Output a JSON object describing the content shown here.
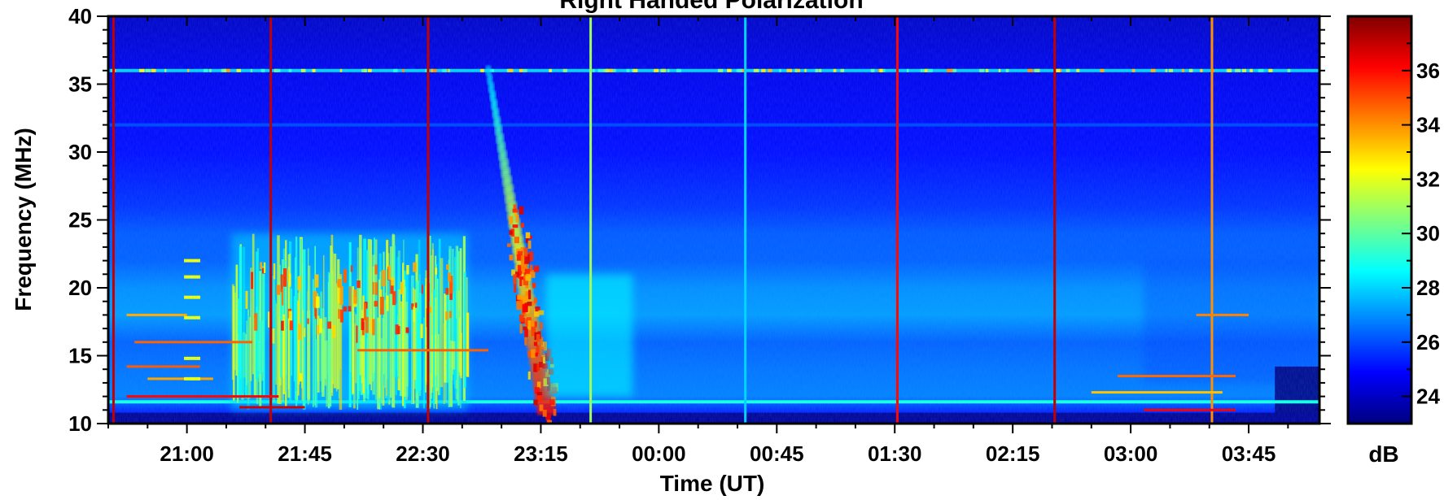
{
  "chart_data": {
    "type": "heatmap",
    "title": "Right Handed Polarization",
    "xlabel": "Time (UT)",
    "ylabel": "Frequency (MHz)",
    "x_ticks": [
      "21:00",
      "21:45",
      "22:30",
      "23:15",
      "00:00",
      "00:45",
      "01:30",
      "02:15",
      "03:00",
      "03:45"
    ],
    "x_tick_minutes": [
      75,
      120,
      165,
      210,
      255,
      300,
      345,
      390,
      435,
      480
    ],
    "xlim_minutes": [
      45,
      507
    ],
    "ylim": [
      10,
      40
    ],
    "y_ticks": [
      10,
      15,
      20,
      25,
      30,
      35,
      40
    ],
    "colorbar": {
      "label": "dB",
      "range": [
        23,
        38
      ],
      "ticks": [
        24,
        26,
        28,
        30,
        32,
        34,
        36
      ],
      "colormap": [
        "#00007f",
        "#0000ff",
        "#007fff",
        "#00ffff",
        "#7fff7f",
        "#ffff00",
        "#ff7f00",
        "#ff0000",
        "#7f0000"
      ]
    },
    "background_db": 24.5,
    "features": [
      {
        "kind": "narrowband_line",
        "freq": 36,
        "db": 28
      },
      {
        "kind": "narrowband_line",
        "freq": 32,
        "db": 26
      },
      {
        "kind": "narrowband_line",
        "freq": 11.6,
        "db": 29
      },
      {
        "kind": "drifting_burst",
        "t_start": 190,
        "f_start": 36,
        "t_end": 212,
        "f_end": 11,
        "peak_db": 36
      },
      {
        "kind": "burst_region",
        "t_start": 92,
        "t_end": 182,
        "f_low": 11,
        "f_high": 24,
        "peak_db": 33
      },
      {
        "kind": "vertical_line",
        "t": 47,
        "db": 37
      },
      {
        "kind": "vertical_line",
        "t": 107,
        "db": 37
      },
      {
        "kind": "vertical_line",
        "t": 167,
        "db": 37
      },
      {
        "kind": "vertical_line",
        "t": 229,
        "db": 31
      },
      {
        "kind": "vertical_line",
        "t": 288,
        "db": 28
      },
      {
        "kind": "vertical_line",
        "t": 346,
        "db": 36
      },
      {
        "kind": "vertical_line",
        "t": 406,
        "db": 37
      },
      {
        "kind": "vertical_line",
        "t": 466,
        "db": 34
      }
    ]
  }
}
